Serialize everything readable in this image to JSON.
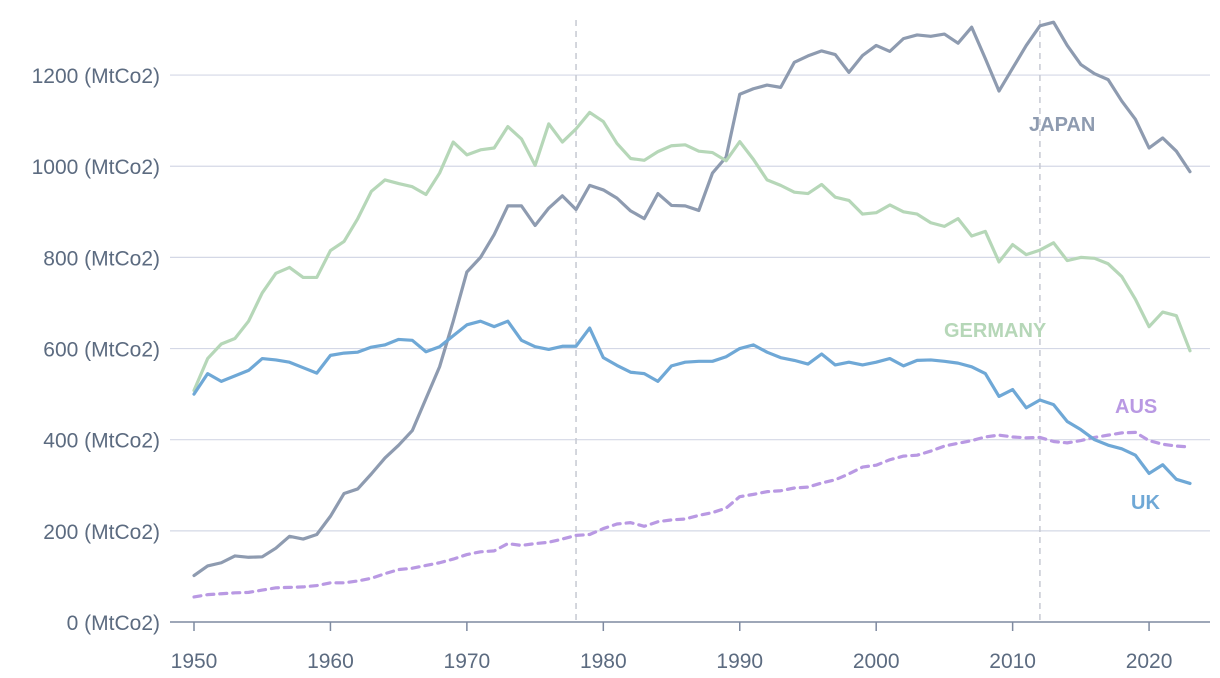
{
  "chart_data": {
    "type": "line",
    "title": "",
    "xlabel": "",
    "ylabel": "",
    "xlim": [
      1950,
      2023
    ],
    "ylim": [
      0,
      1300
    ],
    "x_ticks": [
      1950,
      1960,
      1970,
      1980,
      1990,
      2000,
      2010,
      2020
    ],
    "y_ticks": [
      {
        "value": 0,
        "label": "0 (MtCo2)"
      },
      {
        "value": 200,
        "label": "200 (MtCo2)"
      },
      {
        "value": 400,
        "label": "400 (MtCo2)"
      },
      {
        "value": 600,
        "label": "600 (MtCo2)"
      },
      {
        "value": 800,
        "label": "800 (MtCo2)"
      },
      {
        "value": 1000,
        "label": "1000 (MtCo2)"
      },
      {
        "value": 1200,
        "label": "1200 (MtCo2)"
      }
    ],
    "grid": "horizontal",
    "reference_lines_x": [
      1978,
      2012
    ],
    "x": [
      1950,
      1951,
      1952,
      1953,
      1954,
      1955,
      1956,
      1957,
      1958,
      1959,
      1960,
      1961,
      1962,
      1963,
      1964,
      1965,
      1966,
      1967,
      1968,
      1969,
      1970,
      1971,
      1972,
      1973,
      1974,
      1975,
      1976,
      1977,
      1978,
      1979,
      1980,
      1981,
      1982,
      1983,
      1984,
      1985,
      1986,
      1987,
      1988,
      1989,
      1990,
      1991,
      1992,
      1993,
      1994,
      1995,
      1996,
      1997,
      1998,
      1999,
      2000,
      2001,
      2002,
      2003,
      2004,
      2005,
      2006,
      2007,
      2008,
      2009,
      2010,
      2011,
      2012,
      2013,
      2014,
      2015,
      2016,
      2017,
      2018,
      2019,
      2020,
      2021,
      2022,
      2023
    ],
    "series": [
      {
        "name": "JAPAN",
        "key": "japan",
        "color": "#8e9bb0",
        "dashed": false,
        "label_at": [
          2006,
          1095
        ],
        "values": [
          102,
          123,
          130,
          145,
          142,
          143,
          162,
          188,
          182,
          192,
          232,
          282,
          292,
          325,
          360,
          388,
          420,
          490,
          560,
          660,
          768,
          800,
          850,
          913,
          913,
          870,
          908,
          935,
          905,
          958,
          948,
          930,
          902,
          885,
          940,
          914,
          913,
          903,
          985,
          1020,
          1158,
          1170,
          1178,
          1173,
          1228,
          1242,
          1253,
          1245,
          1206,
          1243,
          1265,
          1252,
          1280,
          1288,
          1285,
          1290,
          1270,
          1305,
          1236,
          1165,
          1215,
          1265,
          1308,
          1316,
          1265,
          1223,
          1203,
          1190,
          1143,
          1103,
          1040,
          1062,
          1033,
          988
        ]
      },
      {
        "name": "GERMANY",
        "key": "germany",
        "color": "#b6d7b8",
        "dashed": false,
        "label_at": [
          2004,
          590
        ],
        "values": [
          508,
          578,
          610,
          622,
          660,
          722,
          765,
          778,
          756,
          756,
          815,
          835,
          885,
          945,
          970,
          962,
          955,
          938,
          985,
          1053,
          1025,
          1036,
          1040,
          1087,
          1060,
          1002,
          1093,
          1053,
          1082,
          1118,
          1098,
          1050,
          1017,
          1013,
          1032,
          1045,
          1047,
          1033,
          1030,
          1012,
          1054,
          1015,
          970,
          958,
          943,
          940,
          960,
          932,
          925,
          895,
          898,
          915,
          900,
          895,
          876,
          868,
          885,
          847,
          857,
          790,
          828,
          806,
          816,
          832,
          793,
          800,
          798,
          786,
          758,
          708,
          648,
          680,
          672,
          595
        ]
      },
      {
        "name": "AUS",
        "key": "aus",
        "color": "#b999e3",
        "dashed": true,
        "label_at": [
          2015,
          402
        ],
        "values": [
          55,
          60,
          62,
          64,
          65,
          70,
          75,
          76,
          77,
          80,
          86,
          86,
          90,
          96,
          106,
          115,
          118,
          124,
          130,
          138,
          148,
          154,
          156,
          172,
          168,
          172,
          175,
          182,
          190,
          192,
          205,
          215,
          218,
          210,
          220,
          224,
          226,
          234,
          240,
          250,
          275,
          280,
          286,
          288,
          294,
          296,
          305,
          312,
          325,
          340,
          344,
          356,
          364,
          366,
          375,
          386,
          392,
          398,
          406,
          410,
          406,
          404,
          405,
          396,
          393,
          398,
          405,
          410,
          415,
          416,
          398,
          390,
          386,
          384
        ]
      },
      {
        "name": "UK",
        "key": "uk",
        "color": "#6fa8d6",
        "dashed": false,
        "label_at": [
          2016,
          228
        ],
        "values": [
          500,
          545,
          528,
          540,
          552,
          578,
          575,
          570,
          558,
          546,
          585,
          590,
          592,
          603,
          608,
          620,
          618,
          593,
          604,
          628,
          652,
          660,
          648,
          660,
          618,
          604,
          598,
          605,
          605,
          645,
          580,
          563,
          548,
          545,
          528,
          562,
          570,
          572,
          572,
          582,
          600,
          608,
          592,
          580,
          574,
          566,
          588,
          564,
          570,
          564,
          570,
          578,
          562,
          574,
          575,
          572,
          568,
          560,
          545,
          495,
          510,
          470,
          487,
          477,
          440,
          422,
          400,
          388,
          380,
          366,
          326,
          345,
          313,
          304
        ]
      }
    ]
  }
}
